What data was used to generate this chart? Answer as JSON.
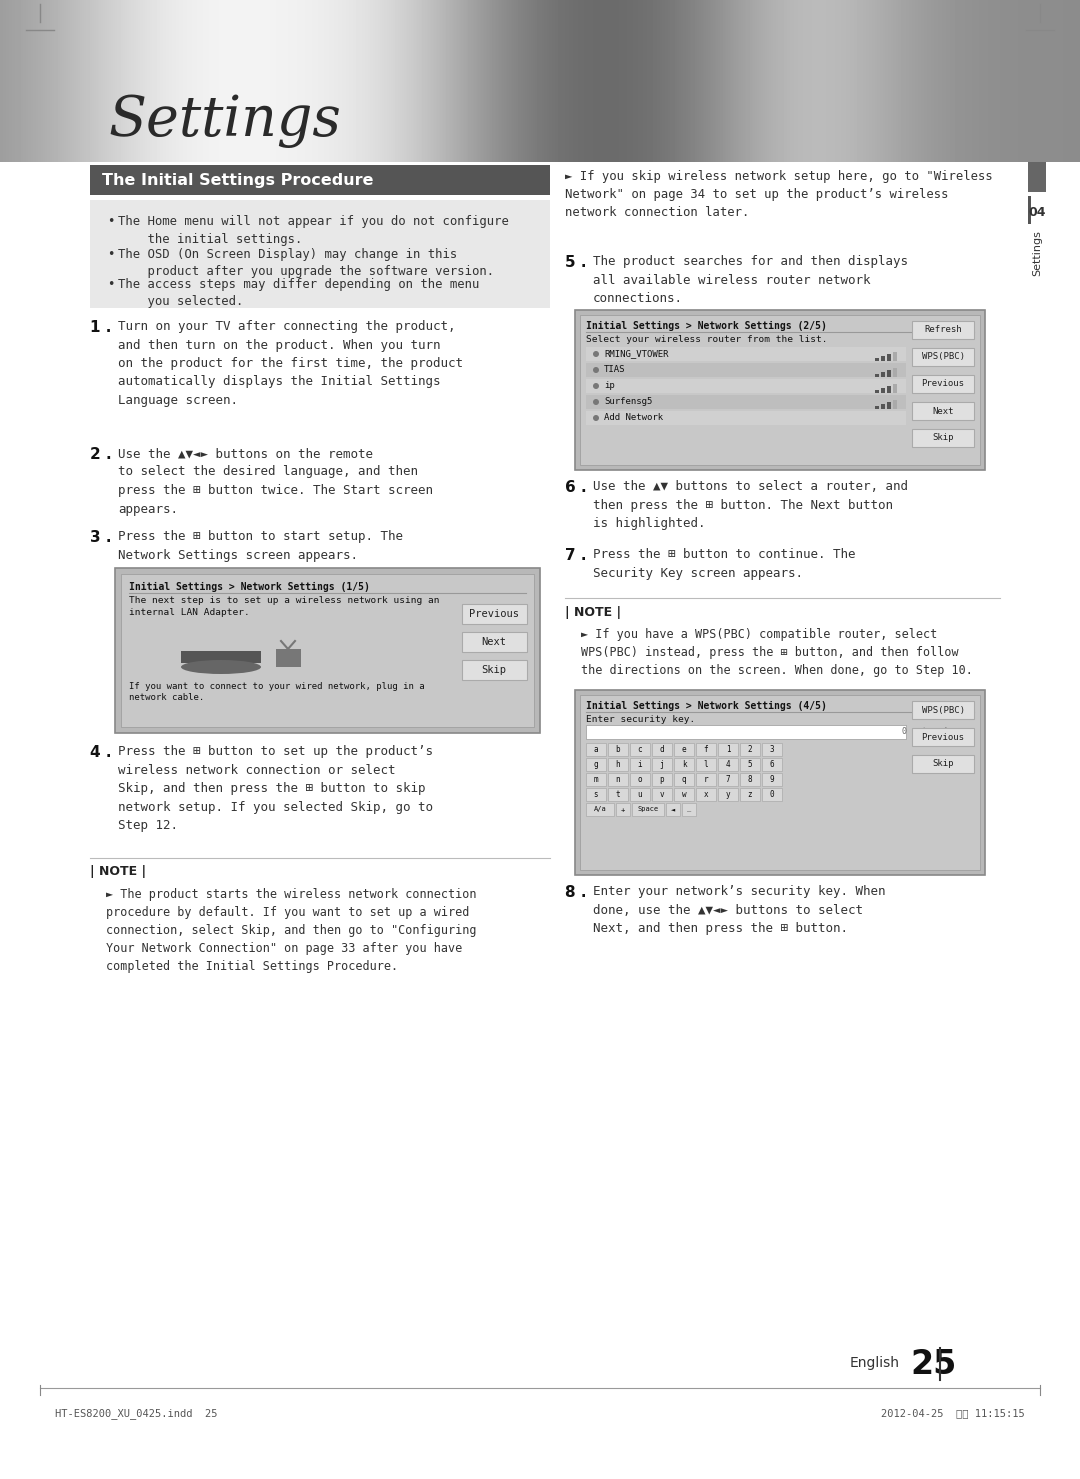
{
  "page_title": "Settings",
  "section_title": "The Initial Settings Procedure",
  "bullet_points": [
    "The Home menu will not appear if you do not configure\n    the initial settings.",
    "The OSD (On Screen Display) may change in this\n    product after you upgrade the software version.",
    "The access steps may differ depending on the menu\n    you selected."
  ],
  "step1_text": "Turn on your TV after connecting the product,\nand then turn on the product. When you turn\non the product for the first time, the product\nautomatically displays the Initial Settings\nLanguage screen.",
  "step2_text": "Use the ▲▼◄► buttons on the remote\nto select the desired language, and then\npress the ⊞ button twice. The Start screen\nappears.",
  "step3_text": "Press the ⊞ button to start setup. The\nNetwork Settings screen appears.",
  "step4_text": "Press the ⊞ button to set up the product’s\nwireless network connection or select\nSkip, and then press the ⊞ button to skip\nnetwork setup. If you selected Skip, go to\nStep 12.",
  "step5_text": "The product searches for and then displays\nall available wireless router network\nconnections.",
  "step6_text": "Use the ▲▼ buttons to select a router, and\nthen press the ⊞ button. The Next button\nis highlighted.",
  "step7_text": "Press the ⊞ button to continue. The\nSecurity Key screen appears.",
  "step8_text": "Enter your network’s security key. When\ndone, use the ▲▼◄► buttons to select\nNext, and then press the ⊞ button.",
  "right_bullet": "If you skip wireless network setup here, go to \"Wireless\nNetwork\" on page 34 to set up the product’s wireless\nnetwork connection later.",
  "note_left_text": "The product starts the wireless network connection\nprocedure by default. If you want to set up a wired\nconnection, select Skip, and then go to \"Configuring\nYour Network Connection\" on page 33 after you have\ncompleted the Initial Settings Procedure.",
  "note_right_text": "If you have a WPS(PBC) compatible router, select\nWPS(PBC) instead, press the ⊞ button, and then follow\nthe directions on the screen. When done, go to Step 10.",
  "screen1_title": "Initial Settings > Network Settings (1/5)",
  "screen1_text": "The next step is to set up a wireless network using an\ninternal LAN Adapter.",
  "screen1_text2": "If you want to connect to your wired network, plug in a\nnetwork cable.",
  "screen2_title": "Initial Settings > Network Settings (2/5)",
  "screen2_subtitle": "Select your wireless router from the list.",
  "networks": [
    "RMING_VTOWER",
    "TIAS",
    "ip",
    "Surfensg5",
    "Add Network"
  ],
  "screen3_title": "Initial Settings > Network Settings (4/5)",
  "screen3_text": "Enter security key.",
  "footer_left": "HT-ES8200_XU_0425.indd  25",
  "footer_right": "2012-04-25  오전 11:15:15",
  "page_num": "25",
  "bg_color": "#ffffff",
  "section_title_bg": "#555555",
  "section_title_color": "#ffffff",
  "bullet_bg": "#e8e8e8",
  "text_color": "#222222",
  "screen_border": "#999999",
  "screen_bg": "#cccccc",
  "screen_inner_bg": "#c0c0c0",
  "btn_bg": "#e8e8e8",
  "btn_border": "#aaaaaa"
}
